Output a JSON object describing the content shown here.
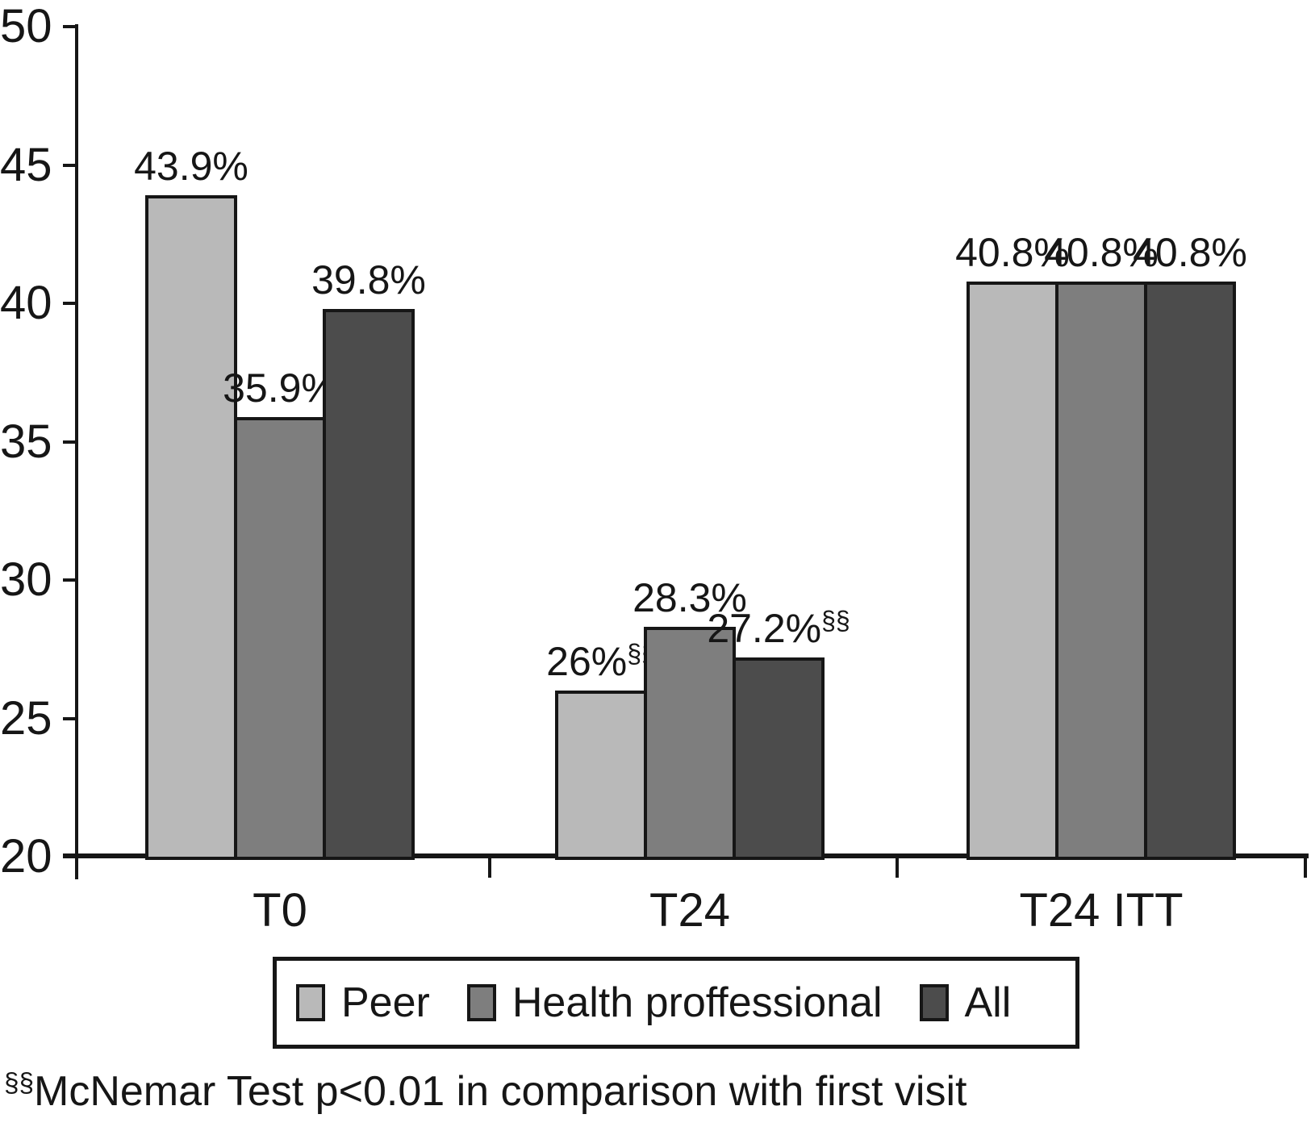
{
  "chart_data": {
    "type": "bar",
    "title": "",
    "xlabel": "",
    "ylabel": "",
    "categories": [
      "T0",
      "T24",
      "T24 ITT"
    ],
    "series": [
      {
        "name": "Peer",
        "color": "#b9b9b9",
        "values": [
          43.9,
          26.0,
          40.8
        ],
        "value_labels": [
          "43.9%",
          "26%",
          "40.8%"
        ],
        "value_label_sups": [
          "",
          "§§",
          ""
        ]
      },
      {
        "name": "Health proffessional",
        "color": "#7e7e7e",
        "values": [
          35.9,
          28.3,
          40.8
        ],
        "value_labels": [
          "35.9%",
          "28.3%",
          "40.8%"
        ],
        "value_label_sups": [
          "",
          "",
          ""
        ]
      },
      {
        "name": "All",
        "color": "#4c4c4c",
        "values": [
          39.8,
          27.2,
          40.8
        ],
        "value_labels": [
          "39.8%",
          "27.2%",
          "40.8%"
        ],
        "value_label_sups": [
          "",
          "§§",
          ""
        ]
      }
    ],
    "ylim": [
      20,
      50
    ],
    "yticks": [
      20,
      25,
      30,
      35,
      40,
      45,
      50
    ],
    "grid": false,
    "legend_position": "bottom",
    "axis_color": "#161616"
  },
  "footnote": {
    "sup": "§§",
    "text": "McNemar Test p<0.01 in comparison with first visit"
  }
}
